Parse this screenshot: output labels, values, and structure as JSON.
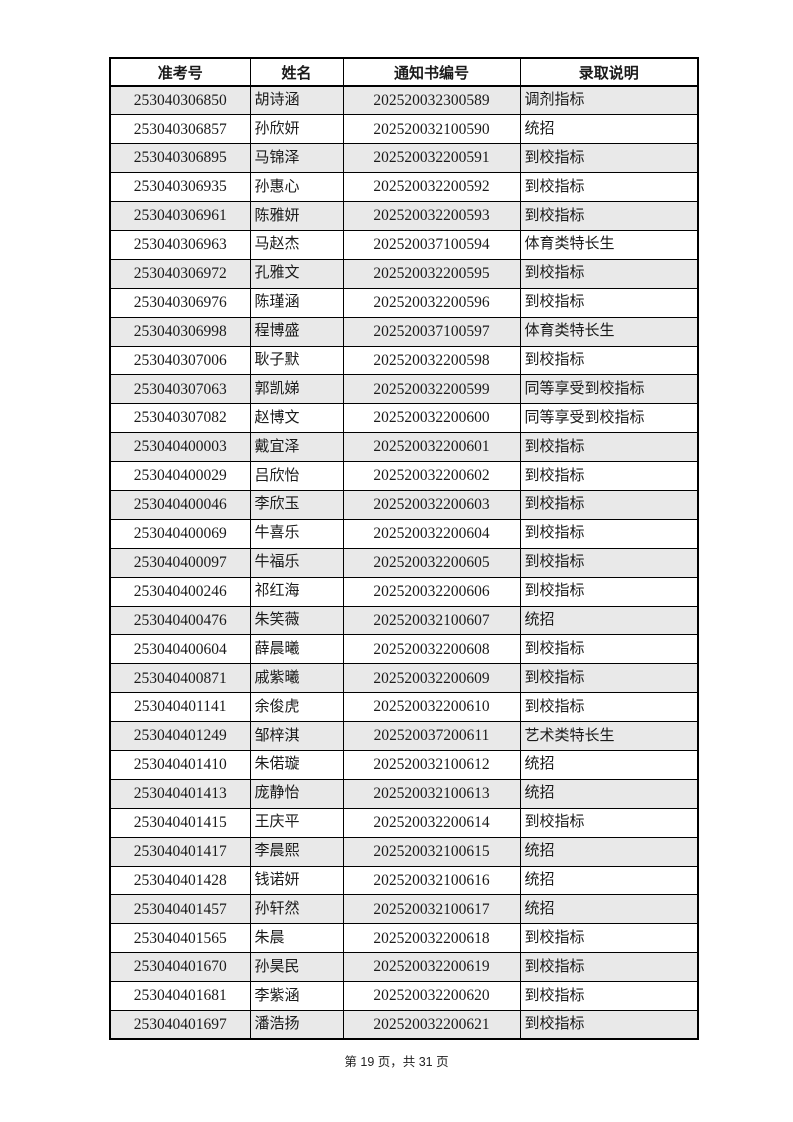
{
  "colors": {
    "row_stripe": "#e9e9e9",
    "grid_border": "#000000",
    "text": "#1a1a1a"
  },
  "table": {
    "headers": [
      "准考号",
      "姓名",
      "通知书编号",
      "录取说明"
    ],
    "rows": [
      [
        "253040306850",
        "胡诗涵",
        "202520032300589",
        "调剂指标"
      ],
      [
        "253040306857",
        "孙欣妍",
        "202520032100590",
        "统招"
      ],
      [
        "253040306895",
        "马锦泽",
        "202520032200591",
        "到校指标"
      ],
      [
        "253040306935",
        "孙惠心",
        "202520032200592",
        "到校指标"
      ],
      [
        "253040306961",
        "陈雅妍",
        "202520032200593",
        "到校指标"
      ],
      [
        "253040306963",
        "马赵杰",
        "202520037100594",
        "体育类特长生"
      ],
      [
        "253040306972",
        "孔雅文",
        "202520032200595",
        "到校指标"
      ],
      [
        "253040306976",
        "陈瑾涵",
        "202520032200596",
        "到校指标"
      ],
      [
        "253040306998",
        "程博盛",
        "202520037100597",
        "体育类特长生"
      ],
      [
        "253040307006",
        "耿子默",
        "202520032200598",
        "到校指标"
      ],
      [
        "253040307063",
        "郭凯娣",
        "202520032200599",
        "同等享受到校指标"
      ],
      [
        "253040307082",
        "赵博文",
        "202520032200600",
        "同等享受到校指标"
      ],
      [
        "253040400003",
        "戴宜泽",
        "202520032200601",
        "到校指标"
      ],
      [
        "253040400029",
        "吕欣怡",
        "202520032200602",
        "到校指标"
      ],
      [
        "253040400046",
        "李欣玉",
        "202520032200603",
        "到校指标"
      ],
      [
        "253040400069",
        "牛喜乐",
        "202520032200604",
        "到校指标"
      ],
      [
        "253040400097",
        "牛福乐",
        "202520032200605",
        "到校指标"
      ],
      [
        "253040400246",
        "祁红海",
        "202520032200606",
        "到校指标"
      ],
      [
        "253040400476",
        "朱笑薇",
        "202520032100607",
        "统招"
      ],
      [
        "253040400604",
        "薛晨曦",
        "202520032200608",
        "到校指标"
      ],
      [
        "253040400871",
        "戚紫曦",
        "202520032200609",
        "到校指标"
      ],
      [
        "253040401141",
        "余俊虎",
        "202520032200610",
        "到校指标"
      ],
      [
        "253040401249",
        "邹梓淇",
        "202520037200611",
        "艺术类特长生"
      ],
      [
        "253040401410",
        "朱偌璇",
        "202520032100612",
        "统招"
      ],
      [
        "253040401413",
        "庞静怡",
        "202520032100613",
        "统招"
      ],
      [
        "253040401415",
        "王庆平",
        "202520032200614",
        "到校指标"
      ],
      [
        "253040401417",
        "李晨熙",
        "202520032100615",
        "统招"
      ],
      [
        "253040401428",
        "钱诺妍",
        "202520032100616",
        "统招"
      ],
      [
        "253040401457",
        "孙轩然",
        "202520032100617",
        "统招"
      ],
      [
        "253040401565",
        "朱晨",
        "202520032200618",
        "到校指标"
      ],
      [
        "253040401670",
        "孙昊民",
        "202520032200619",
        "到校指标"
      ],
      [
        "253040401681",
        "李紫涵",
        "202520032200620",
        "到校指标"
      ],
      [
        "253040401697",
        "潘浩扬",
        "202520032200621",
        "到校指标"
      ]
    ]
  },
  "footer": {
    "text": "第 19 页，共 31 页"
  }
}
